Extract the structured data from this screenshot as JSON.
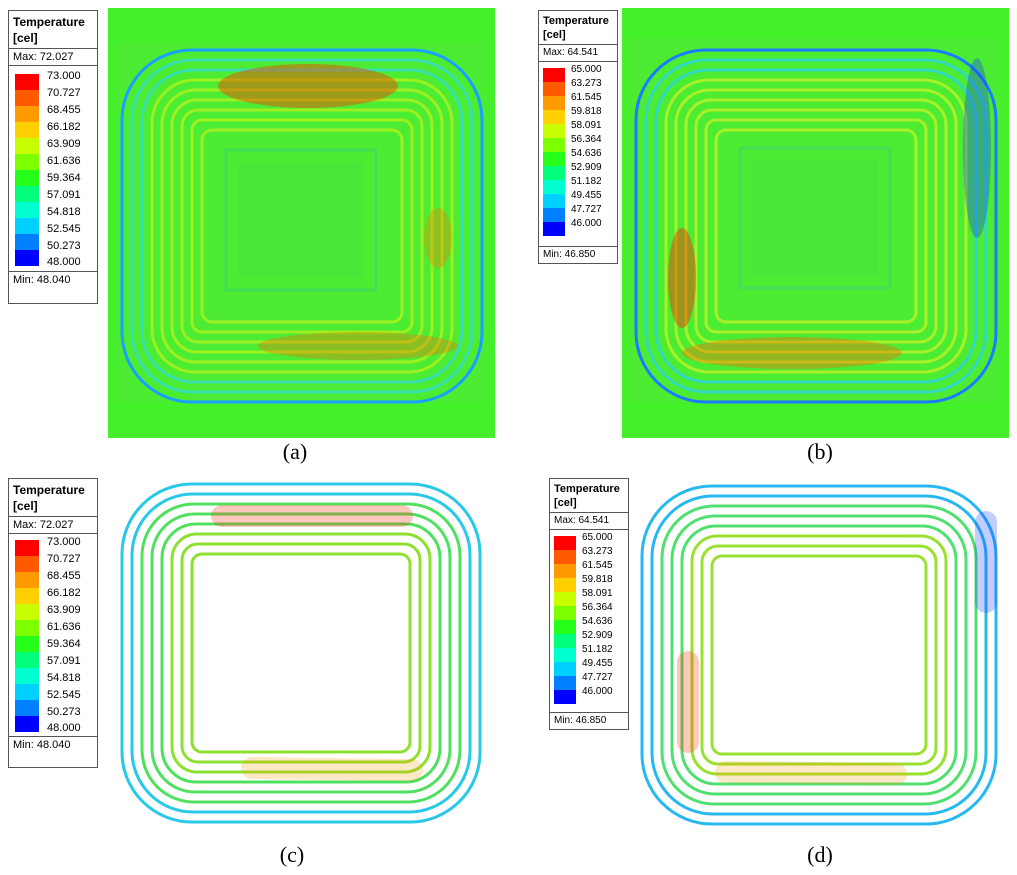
{
  "panels": [
    {
      "caption": "(a)",
      "legend": {
        "title_line1": "Temperature",
        "title_line2": "[cel]",
        "max_label": "Max: 72.027",
        "min_label": "Min: 48.040",
        "ticks": [
          "73.000",
          "70.727",
          "68.455",
          "66.182",
          "63.909",
          "61.636",
          "59.364",
          "57.091",
          "54.818",
          "52.545",
          "50.273",
          "48.000"
        ],
        "colors": [
          "#ff0000",
          "#ff5a00",
          "#ff9a00",
          "#ffd000",
          "#c8ff00",
          "#7dff00",
          "#25ff1a",
          "#00ff7a",
          "#00ffd0",
          "#00d0ff",
          "#0080ff",
          "#0000ff"
        ]
      }
    },
    {
      "caption": "(b)",
      "legend": {
        "title_line1": "Temperature",
        "title_line2": "[cel]",
        "max_label": "Max: 64.541",
        "min_label": "Min: 46.850",
        "ticks": [
          "65.000",
          "63.273",
          "61.545",
          "59.818",
          "58.091",
          "56.364",
          "54.636",
          "52.909",
          "51.182",
          "49.455",
          "47.727",
          "46.000"
        ],
        "colors": [
          "#ff0000",
          "#ff5a00",
          "#ff9a00",
          "#ffd000",
          "#c8ff00",
          "#7dff00",
          "#25ff1a",
          "#00ff7a",
          "#00ffd0",
          "#00d0ff",
          "#0080ff",
          "#0000ff"
        ]
      }
    },
    {
      "caption": "(c)",
      "legend": {
        "title_line1": "Temperature",
        "title_line2": "[cel]",
        "max_label": "Max: 72.027",
        "min_label": "Min: 48.040",
        "ticks": [
          "73.000",
          "70.727",
          "68.455",
          "66.182",
          "63.909",
          "61.636",
          "59.364",
          "57.091",
          "54.818",
          "52.545",
          "50.273",
          "48.000"
        ],
        "colors": [
          "#ff0000",
          "#ff5a00",
          "#ff9a00",
          "#ffd000",
          "#c8ff00",
          "#7dff00",
          "#25ff1a",
          "#00ff7a",
          "#00ffd0",
          "#00d0ff",
          "#0080ff",
          "#0000ff"
        ]
      }
    },
    {
      "caption": "(d)",
      "legend": {
        "title_line1": "Temperature",
        "title_line2": "[cel]",
        "max_label": "Max: 64.541",
        "min_label": "Min: 46.850",
        "ticks": [
          "65.000",
          "63.273",
          "61.545",
          "59.818",
          "58.091",
          "56.364",
          "54.636",
          "52.909",
          "51.182",
          "49.455",
          "47.727",
          "46.000"
        ],
        "colors": [
          "#ff0000",
          "#ff5a00",
          "#ff9a00",
          "#ffd000",
          "#c8ff00",
          "#7dff00",
          "#25ff1a",
          "#00ff7a",
          "#00ffd0",
          "#00d0ff",
          "#0080ff",
          "#0000ff"
        ]
      }
    }
  ],
  "colors": {
    "field_green": "#44f02a",
    "coil_base": "#3ee83a",
    "hot_red": "#ff2a00",
    "hot_orange": "#ff9a00",
    "cold_blue": "#1a3cff",
    "cyan": "#00e0e0"
  }
}
